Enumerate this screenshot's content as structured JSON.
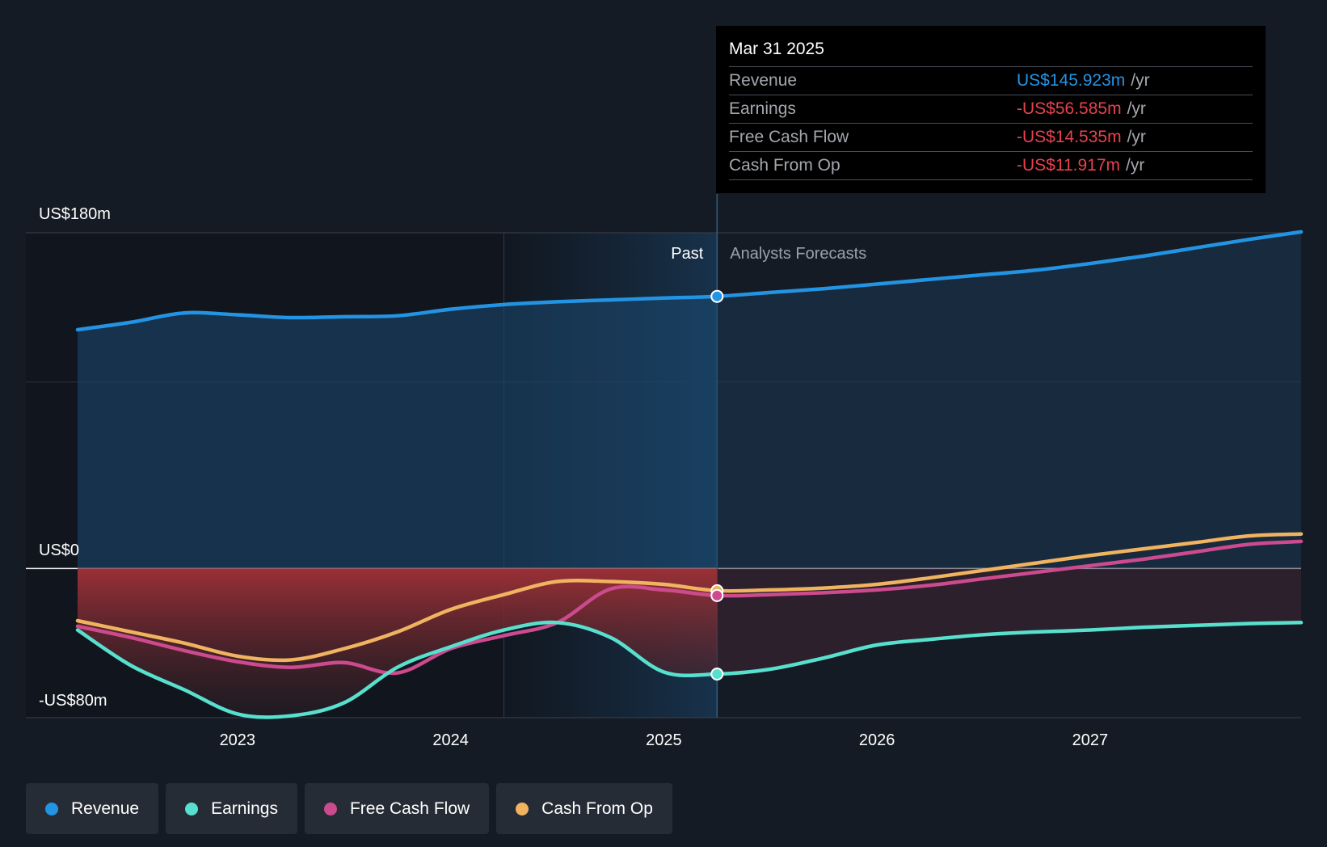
{
  "chart_data": {
    "type": "area",
    "y_labels": {
      "top": "US$180m",
      "zero": "US$0",
      "bottom": "-US$80m"
    },
    "ylim": [
      -80,
      180
    ],
    "xlim": [
      2022.25,
      2027.99
    ],
    "x_ticks": [
      {
        "value": 2023,
        "label": "2023"
      },
      {
        "value": 2024,
        "label": "2024"
      },
      {
        "value": 2025,
        "label": "2025"
      },
      {
        "value": 2026,
        "label": "2026"
      },
      {
        "value": 2027,
        "label": "2027"
      }
    ],
    "divider_x": 2025.25,
    "past_label": "Past",
    "forecast_label": "Analysts Forecasts",
    "grid": true,
    "series": [
      {
        "name": "Revenue",
        "key": "revenue",
        "color": "#2394e3",
        "area": true,
        "x": [
          2022.25,
          2022.5,
          2022.75,
          2023.0,
          2023.25,
          2023.5,
          2023.75,
          2024.0,
          2024.25,
          2024.5,
          2024.75,
          2025.0,
          2025.25,
          2025.5,
          2025.75,
          2026.0,
          2026.25,
          2026.5,
          2026.75,
          2027.0,
          2027.25,
          2027.5,
          2027.75,
          2027.99
        ],
        "y": [
          128,
          132,
          137,
          136,
          134.5,
          135,
          135.5,
          139,
          141.5,
          143,
          144,
          145,
          145.9,
          148,
          150,
          152.5,
          155,
          157.5,
          160,
          163.5,
          167.5,
          172,
          176.5,
          180.5
        ]
      },
      {
        "name": "Earnings",
        "key": "earnings",
        "color": "#58e0ce",
        "area": true,
        "x": [
          2022.25,
          2022.5,
          2022.75,
          2023.0,
          2023.25,
          2023.5,
          2023.75,
          2024.0,
          2024.25,
          2024.5,
          2024.75,
          2025.0,
          2025.25,
          2025.5,
          2025.75,
          2026.0,
          2026.25,
          2026.5,
          2026.75,
          2027.0,
          2027.25,
          2027.5,
          2027.75,
          2027.99
        ],
        "y": [
          -33,
          -52,
          -65,
          -78,
          -79,
          -72,
          -53,
          -42,
          -33,
          -29,
          -37,
          -55.5,
          -56.6,
          -54,
          -48,
          -41,
          -38,
          -35.5,
          -34,
          -33,
          -31.5,
          -30.5,
          -29.5,
          -29
        ]
      },
      {
        "name": "Free Cash Flow",
        "key": "fcf",
        "color": "#cc4a8e",
        "area": false,
        "x": [
          2022.25,
          2022.5,
          2022.75,
          2023.0,
          2023.25,
          2023.5,
          2023.75,
          2024.0,
          2024.25,
          2024.5,
          2024.75,
          2025.0,
          2025.25,
          2025.5,
          2025.75,
          2026.0,
          2026.25,
          2026.5,
          2026.75,
          2027.0,
          2027.25,
          2027.5,
          2027.75,
          2027.99
        ],
        "y": [
          -31,
          -37,
          -44,
          -50,
          -53,
          -50.5,
          -56,
          -43,
          -36,
          -29,
          -11,
          -11.5,
          -14.5,
          -14,
          -13,
          -11.5,
          -9,
          -5.5,
          -2,
          1.5,
          5,
          9,
          13,
          14.5
        ]
      },
      {
        "name": "Cash From Op",
        "key": "cfo",
        "color": "#f0b360",
        "area": false,
        "x": [
          2022.25,
          2022.5,
          2022.75,
          2023.0,
          2023.25,
          2023.5,
          2023.75,
          2024.0,
          2024.25,
          2024.5,
          2024.75,
          2025.0,
          2025.25,
          2025.5,
          2025.75,
          2026.0,
          2026.25,
          2026.5,
          2026.75,
          2027.0,
          2027.25,
          2027.5,
          2027.75,
          2027.99
        ],
        "y": [
          -28,
          -34,
          -40,
          -47,
          -49,
          -43,
          -34,
          -22,
          -14,
          -7,
          -7,
          -8.5,
          -11.9,
          -11.5,
          -10.5,
          -8.5,
          -5,
          -1,
          3,
          7,
          10.5,
          14,
          17.5,
          18.5
        ]
      }
    ]
  },
  "tooltip": {
    "date": "Mar 31 2025",
    "rows": [
      {
        "label": "Revenue",
        "value": "US$145.923m",
        "unit": "/yr",
        "color": "#2394e3"
      },
      {
        "label": "Earnings",
        "value": "-US$56.585m",
        "unit": "/yr",
        "color": "#e8424e"
      },
      {
        "label": "Free Cash Flow",
        "value": "-US$14.535m",
        "unit": "/yr",
        "color": "#e8424e"
      },
      {
        "label": "Cash From Op",
        "value": "-US$11.917m",
        "unit": "/yr",
        "color": "#e8424e"
      }
    ]
  },
  "legend": [
    {
      "label": "Revenue",
      "color": "#2394e3"
    },
    {
      "label": "Earnings",
      "color": "#58e0ce"
    },
    {
      "label": "Free Cash Flow",
      "color": "#cc4a8e"
    },
    {
      "label": "Cash From Op",
      "color": "#f0b360"
    }
  ]
}
